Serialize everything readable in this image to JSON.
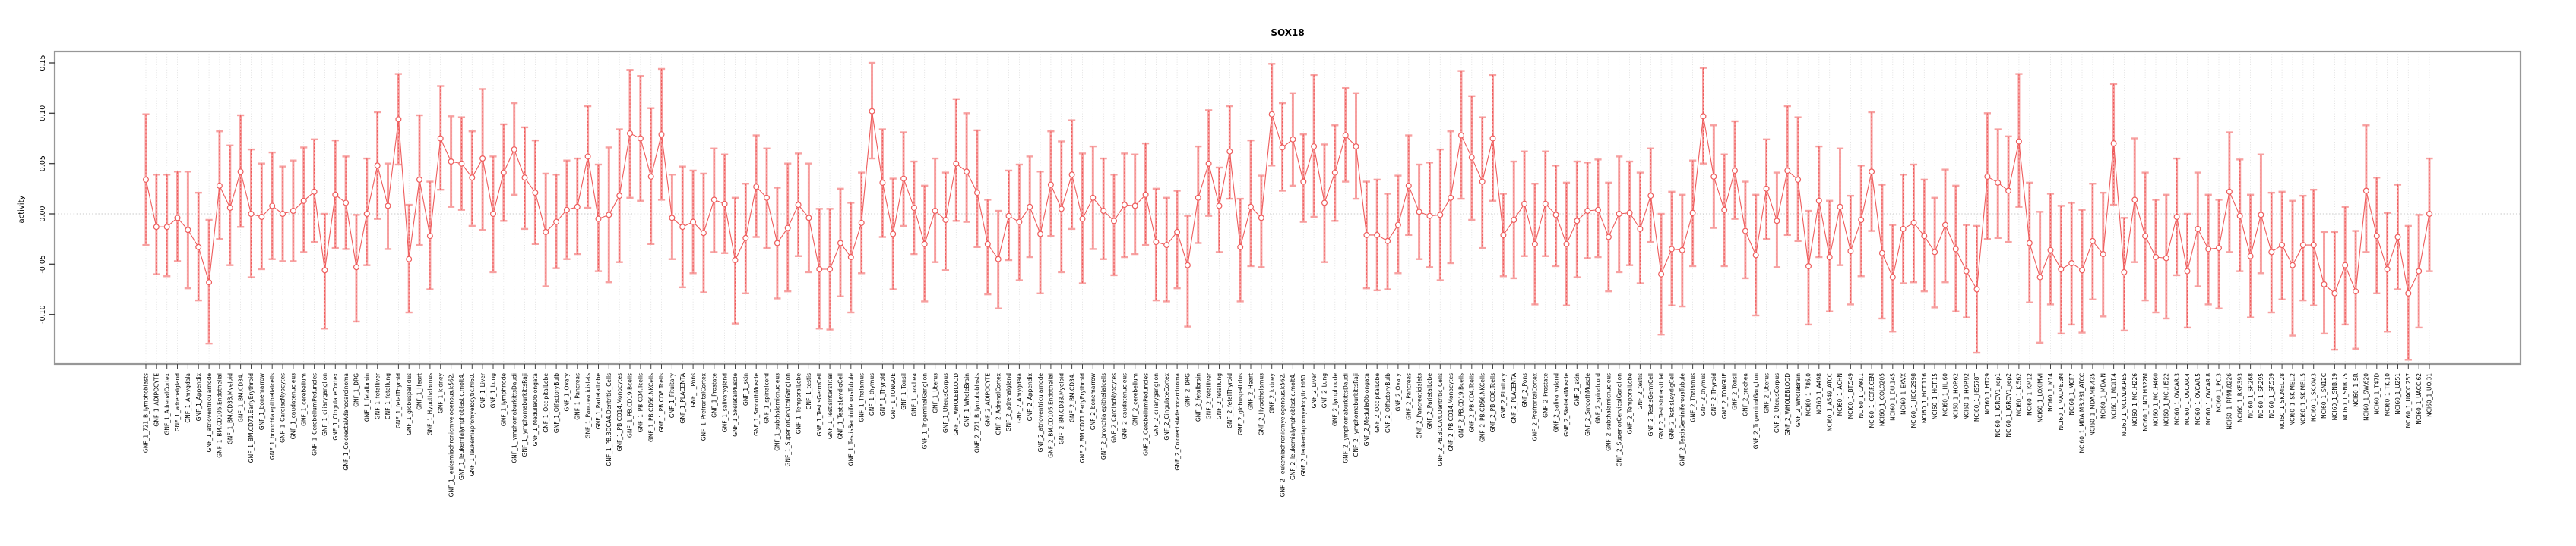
{
  "chart_data": {
    "type": "scatter",
    "subtype": "points-with-error-bars",
    "title": "SOX18",
    "ylabel": "activity",
    "xlabel": "",
    "ylim": [
      -0.149,
      0.161
    ],
    "y_ticks": [
      -0.1,
      -0.05,
      0.0,
      0.05,
      0.1,
      0.15
    ],
    "y_tick_labels": [
      "-0.10",
      "-0.05",
      "0.00",
      "0.05",
      "0.10",
      "0.15"
    ],
    "grid": "dotted vertical gridline per category, dotted horizontal zero line",
    "legend_position": "none",
    "colors": {
      "series": "#ee5c5c",
      "error_bar": "#f7a1a1",
      "grid": "#dcdcdc",
      "zero_line": "#c8c8c8",
      "box": "#979797",
      "tick": "#444444",
      "text": "#000000"
    },
    "categories": [
      "GNF_1_721_B_lymphoblasts",
      "GNF_1_ADIPOCYTE",
      "GNF_1_AdrenalCortex",
      "GNF_1_adrenalgland",
      "GNF_1_Amygdala",
      "GNF_1_Appendix",
      "GNF_1_atrioventricularnode",
      "GNF_1_BM.CD105.Endothelial",
      "GNF_1_BM.CD33.Myeloid",
      "GNF_1_BM.CD34.",
      "GNF_1_BM.CD71.EarlyErythroid",
      "GNF_1_bonemarrow",
      "GNF_1_bronchialepithelialcells",
      "GNF_1_CardiacMyocytes",
      "GNF_1_caudatenucleus",
      "GNF_1_cerebellum",
      "GNF_1_CerebellumPeduncles",
      "GNF_1_ciliaryganglion",
      "GNF_1_CingulateCortex",
      "GNF_1_ColorectalAdenocarcinoma",
      "GNF_1_DRG",
      "GNF_1_fetalbrain",
      "GNF_1_fetalliver",
      "GNF_1_fetallung",
      "GNF_1_fetalThyroid",
      "GNF_1_globuspallidus",
      "GNF_1_Heart",
      "GNF_1_Hypothalamus",
      "GNF_1_kidney",
      "GNF_1_leukemiachronicmyelogenous.k562.",
      "GNF_1_leukemialymphoblastic.molt4.",
      "GNF_1_leukemiapromyelocytic.hl60.",
      "GNF_1_Liver",
      "GNF_1_Lung",
      "GNF_1_lymphnode",
      "GNF_1_lymphomaburkittsDaudi",
      "GNF_1_lymphomaburkittsRaji",
      "GNF_1_MedullaOblongata",
      "GNF_1_OccipitalLobe",
      "GNF_1_OlfactoryBulb",
      "GNF_1_Ovary",
      "GNF_1_Pancreas",
      "GNF_1_Pancreaticislets",
      "GNF_1_ParietalLobe",
      "GNF_1_PB.BDCA4.Dentritic_Cells",
      "GNF_1_PB.CD14.Monocytes",
      "GNF_1_PB.CD19.Bcells",
      "GNF_1_PB.CD4.Tcells",
      "GNF_1_PB.CD56.NKCells",
      "GNF_1_PB.CD8.Tcells",
      "GNF_1_Pituitary",
      "GNF_1_PLACENTA",
      "GNF_1_Pons",
      "GNF_1_PrefrontalCortex",
      "GNF_1_Prostate",
      "GNF_1_salivarygland",
      "GNF_1_SkeletalMuscle",
      "GNF_1_skin",
      "GNF_1_SmoothMuscle",
      "GNF_1_spinalcord",
      "GNF_1_subthalamicnucleus",
      "GNF_1_SuperiorCervicalGanglion",
      "GNF_1_TemporalLobe",
      "GNF_1_testis",
      "GNF_1_TestisGermCell",
      "GNF_1_TestisInterstitial",
      "GNF_1_TestisLeydigCell",
      "GNF_1_TestisSeminiferousTubule",
      "GNF_1_Thalamus",
      "GNF_1_thymus",
      "GNF_1_Thyroid",
      "GNF_1_TONGUE",
      "GNF_1_Tonsil",
      "GNF_1_trachea",
      "GNF_1_TrigeminalGanglion",
      "GNF_1_Uterus",
      "GNF_1_UterusCorpus",
      "GNF_1_WHOLEBLOOD",
      "GNF_1_WholeBrain",
      "GNF_2_721_B_lymphoblasts",
      "GNF_2_ADIPOCYTE",
      "GNF_2_AdrenalCortex",
      "GNF_2_adrenalgland",
      "GNF_2_Amygdala",
      "GNF_2_Appendix",
      "GNF_2_atrioventricularnode",
      "GNF_2_BM.CD105.Endothelial",
      "GNF_2_BM.CD33.Myeloid",
      "GNF_2_BM.CD34.",
      "GNF_2_BM.CD71.EarlyErythroid",
      "GNF_2_bonemarrow",
      "GNF_2_bronchialepithelialcells",
      "GNF_2_CardiacMyocytes",
      "GNF_2_caudatenucleus",
      "GNF_2_cerebellum",
      "GNF_2_CerebellumPeduncles",
      "GNF_2_ciliaryganglion",
      "GNF_2_CingulateCortex",
      "GNF_2_ColorectalAdenocarcinoma",
      "GNF_2_DRG",
      "GNF_2_fetalbrain",
      "GNF_2_fetalliver",
      "GNF_2_fetallung",
      "GNF_2_fetalThyroid",
      "GNF_2_globuspallidus",
      "GNF_2_Heart",
      "GNF_2_Hypothalamus",
      "GNF_2_kidney",
      "GNF_2_leukemiachronicmyelogenous.k562.",
      "GNF_2_leukemialymphoblastic.molt4.",
      "GNF_2_leukemiapromyelocytic.hl60.",
      "GNF_2_Liver",
      "GNF_2_Lung",
      "GNF_2_lymphnode",
      "GNF_2_lymphomaburkittsDaudi",
      "GNF_2_lymphomaburkittsRaji",
      "GNF_2_MedullaOblongata",
      "GNF_2_OccipitalLobe",
      "GNF_2_OlfactoryBulb",
      "GNF_2_Ovary",
      "GNF_2_Pancreas",
      "GNF_2_Pancreaticislets",
      "GNF_2_ParietalLobe",
      "GNF_2_PB.BDCA4.Dentritic_Cells",
      "GNF_2_PB.CD14.Monocytes",
      "GNF_2_PB.CD19.Bcells",
      "GNF_2_PB.CD4.Tcells",
      "GNF_2_PB.CD56.NKCells",
      "GNF_2_PB.CD8.Tcells",
      "GNF_2_Pituitary",
      "GNF_2_PLACENTA",
      "GNF_2_Pons",
      "GNF_2_PrefrontalCortex",
      "GNF_2_Prostate",
      "GNF_2_salivarygland",
      "GNF_2_SkeletalMuscle",
      "GNF_2_skin",
      "GNF_2_SmoothMuscle",
      "GNF_2_spinalcord",
      "GNF_2_subthalamicnucleus",
      "GNF_2_SuperiorCervicalGanglion",
      "GNF_2_TemporalLobe",
      "GNF_2_testis",
      "GNF_2_TestisGermCell",
      "GNF_2_TestisInterstitial",
      "GNF_2_TestisLeydigCell",
      "GNF_2_TestisSeminiferousTubule",
      "GNF_2_Thalamus",
      "GNF_2_thymus",
      "GNF_2_Thyroid",
      "GNF_2_TONGUE",
      "GNF_2_Tonsil",
      "GNF_2_trachea",
      "GNF_2_TrigeminalGanglion",
      "GNF_2_Uterus",
      "GNF_2_UterusCorpus",
      "GNF_2_WHOLEBLOOD",
      "GNF_2_WholeBrain",
      "NCI60_1_786.0",
      "NCI60_1_A498",
      "NCI60_1_A549_ATCC",
      "NCI60_1_ACHN",
      "NCI60_1_BT.549",
      "NCI60_1_CAKI.1",
      "NCI60_1_CCRF.CEM",
      "NCI60_1_COLO205",
      "NCI60_1_DU.145",
      "NCI60_1_EKVX",
      "NCI60_1_HCC.2998",
      "NCI60_1_HCT.116",
      "NCI60_1_HCT.15",
      "NCI60_1_HL.60",
      "NCI60_1_HOP.62",
      "NCI60_1_HOP.92",
      "NCI60_1_HS578T",
      "NCI60_1_HT29",
      "NCI60_1_IGROV1_rep1",
      "NCI60_1_IGROV1_rep2",
      "NCI60_1_K.562",
      "NCI60_1_KM12",
      "NCI60_1_LOXIMVI",
      "NCI60_1_M14",
      "NCI60_1_MALME.3M",
      "NCI60_1_MCF7",
      "NCI60_1_MDA.MB.231_ATCC",
      "NCI60_1_MDA.MB.435",
      "NCI60_1_MDA.N",
      "NCI60_1_MOLT.4",
      "NCI60_1_NCI.ADR.RES",
      "NCI60_1_NCI.H226",
      "NCI60_1_NCI.H322M",
      "NCI60_1_NCI.H460",
      "NCI60_1_NCI.H522",
      "NCI60_1_OVCAR.3",
      "NCI60_1_OVCAR.4",
      "NCI60_1_OVCAR.5",
      "NCI60_1_OVCAR.8",
      "NCI60_1_PC.3",
      "NCI60_1_RPMI.8226",
      "NCI60_1_RXF.393",
      "NCI60_1_SF.268",
      "NCI60_1_SF.295",
      "NCI60_1_SF.539",
      "NCI60_1_SK.MEL.28",
      "NCI60_1_SK.MEL.2",
      "NCI60_1_SK.MEL.5",
      "NCI60_1_SK.OV.3",
      "NCI60_1_SN12C",
      "NCI60_1_SNB.19",
      "NCI60_1_SNB.75",
      "NCI60_1_SR",
      "NCI60_1_SW.620",
      "NCI60_1_T47D",
      "NCI60_1_TK.10",
      "NCI60_1_U251",
      "NCI60_1_UACC.257",
      "NCI60_1_UACC.62",
      "NCI60_1_UO.31"
    ],
    "values": [
      0.034,
      -0.013,
      -0.013,
      -0.004,
      -0.016,
      -0.033,
      -0.068,
      0.028,
      0.006,
      0.042,
      0.0,
      -0.003,
      0.008,
      0.0,
      0.003,
      0.013,
      0.022,
      -0.056,
      0.019,
      0.011,
      -0.053,
      0.0,
      0.048,
      0.008,
      0.094,
      -0.045,
      0.034,
      -0.022,
      0.075,
      0.052,
      0.05,
      0.036,
      0.055,
      0.0,
      0.041,
      0.064,
      0.036,
      0.021,
      -0.018,
      -0.008,
      0.004,
      0.007,
      0.057,
      -0.005,
      -0.001,
      0.018,
      0.08,
      0.075,
      0.037,
      0.079,
      -0.004,
      -0.013,
      -0.008,
      -0.019,
      0.014,
      0.01,
      -0.046,
      -0.024,
      0.027,
      0.016,
      -0.029,
      -0.014,
      0.009,
      -0.004,
      -0.055,
      -0.055,
      -0.029,
      -0.043,
      -0.009,
      0.102,
      0.031,
      -0.02,
      0.035,
      0.006,
      -0.03,
      0.003,
      -0.006,
      0.05,
      0.042,
      0.021,
      -0.03,
      -0.045,
      -0.002,
      -0.008,
      0.007,
      -0.02,
      0.029,
      0.005,
      0.039,
      -0.005,
      0.016,
      0.003,
      -0.007,
      0.009,
      0.008,
      0.019,
      -0.028,
      -0.031,
      -0.018,
      -0.051,
      0.016,
      0.05,
      0.008,
      0.062,
      -0.033,
      0.007,
      -0.004,
      0.099,
      0.066,
      0.074,
      0.032,
      0.067,
      0.011,
      0.041,
      0.078,
      0.067,
      -0.021,
      -0.021,
      -0.027,
      -0.011,
      0.028,
      0.002,
      -0.002,
      -0.001,
      0.016,
      0.078,
      0.056,
      0.032,
      0.075,
      -0.021,
      -0.006,
      0.01,
      -0.03,
      0.01,
      -0.001,
      -0.03,
      -0.007,
      0.003,
      0.004,
      -0.023,
      0.0,
      0.001,
      -0.015,
      0.018,
      -0.06,
      -0.035,
      -0.036,
      0.001,
      0.097,
      0.037,
      0.004,
      0.043,
      -0.017,
      -0.041,
      0.025,
      -0.007,
      0.043,
      0.034,
      -0.052,
      0.013,
      -0.043,
      0.007,
      -0.037,
      -0.006,
      0.042,
      -0.039,
      -0.063,
      -0.015,
      -0.009,
      -0.022,
      -0.038,
      -0.011,
      -0.035,
      -0.057,
      -0.075,
      0.037,
      0.031,
      0.023,
      0.072,
      -0.029,
      -0.063,
      -0.036,
      -0.055,
      -0.049,
      -0.056,
      -0.027,
      -0.04,
      0.07,
      -0.058,
      0.014,
      -0.022,
      -0.043,
      -0.044,
      -0.003,
      -0.057,
      -0.015,
      -0.035,
      -0.034,
      0.022,
      -0.002,
      -0.042,
      -0.001,
      -0.038,
      -0.031,
      -0.051,
      -0.031,
      -0.031,
      -0.07,
      -0.079,
      -0.051,
      -0.077,
      0.023,
      -0.022,
      -0.055,
      -0.023,
      -0.079,
      -0.057,
      0.0
    ],
    "ci_low": [
      -0.031,
      -0.06,
      -0.062,
      -0.047,
      -0.074,
      -0.086,
      -0.129,
      -0.025,
      -0.051,
      -0.013,
      -0.063,
      -0.055,
      -0.045,
      -0.047,
      -0.047,
      -0.038,
      -0.028,
      -0.114,
      -0.034,
      -0.035,
      -0.107,
      -0.051,
      -0.005,
      -0.035,
      0.049,
      -0.098,
      -0.031,
      -0.075,
      0.024,
      0.007,
      0.004,
      -0.012,
      -0.016,
      -0.058,
      -0.007,
      0.019,
      -0.015,
      -0.03,
      -0.072,
      -0.054,
      -0.045,
      -0.04,
      0.006,
      -0.057,
      -0.068,
      -0.048,
      0.016,
      0.013,
      -0.03,
      0.014,
      -0.045,
      -0.073,
      -0.059,
      -0.078,
      -0.038,
      -0.039,
      -0.109,
      -0.079,
      -0.023,
      -0.034,
      -0.084,
      -0.077,
      -0.042,
      -0.058,
      -0.114,
      -0.115,
      -0.082,
      -0.098,
      -0.059,
      0.055,
      -0.023,
      -0.075,
      -0.012,
      -0.04,
      -0.087,
      -0.048,
      -0.056,
      -0.007,
      -0.008,
      -0.033,
      -0.08,
      -0.094,
      -0.046,
      -0.066,
      -0.043,
      -0.079,
      -0.022,
      -0.058,
      -0.015,
      -0.069,
      -0.035,
      -0.045,
      -0.061,
      -0.043,
      -0.04,
      -0.031,
      -0.086,
      -0.087,
      -0.074,
      -0.112,
      -0.029,
      -0.002,
      -0.038,
      0.015,
      -0.087,
      -0.052,
      -0.053,
      0.048,
      0.023,
      0.028,
      -0.008,
      -0.003,
      -0.048,
      -0.007,
      0.032,
      0.015,
      -0.074,
      -0.076,
      -0.075,
      -0.059,
      -0.021,
      -0.045,
      -0.053,
      -0.066,
      -0.049,
      0.015,
      -0.006,
      -0.034,
      0.013,
      -0.062,
      -0.064,
      -0.042,
      -0.09,
      -0.042,
      -0.052,
      -0.091,
      -0.063,
      -0.044,
      -0.043,
      -0.077,
      -0.058,
      -0.051,
      -0.069,
      -0.028,
      -0.12,
      -0.091,
      -0.092,
      -0.052,
      0.05,
      -0.014,
      -0.052,
      -0.005,
      -0.064,
      -0.101,
      -0.025,
      -0.053,
      -0.021,
      -0.027,
      -0.11,
      -0.043,
      -0.097,
      -0.051,
      -0.09,
      -0.062,
      -0.017,
      -0.104,
      -0.117,
      -0.069,
      -0.068,
      -0.077,
      -0.093,
      -0.068,
      -0.097,
      -0.103,
      -0.138,
      -0.025,
      -0.024,
      -0.028,
      0.007,
      -0.088,
      -0.128,
      -0.09,
      -0.119,
      -0.11,
      -0.118,
      -0.085,
      -0.102,
      0.009,
      -0.116,
      -0.048,
      -0.086,
      -0.098,
      -0.104,
      -0.061,
      -0.113,
      -0.072,
      -0.09,
      -0.094,
      -0.038,
      -0.057,
      -0.103,
      -0.059,
      -0.098,
      -0.085,
      -0.121,
      -0.086,
      -0.091,
      -0.119,
      -0.135,
      -0.11,
      -0.134,
      -0.038,
      -0.079,
      -0.117,
      -0.075,
      -0.145,
      -0.113,
      -0.057
    ],
    "ci_high": [
      0.099,
      0.039,
      0.039,
      0.042,
      0.042,
      0.021,
      -0.006,
      0.082,
      0.068,
      0.098,
      0.064,
      0.05,
      0.061,
      0.047,
      0.053,
      0.066,
      0.074,
      0.0,
      0.073,
      0.057,
      -0.001,
      0.055,
      0.101,
      0.05,
      0.139,
      0.009,
      0.098,
      0.032,
      0.127,
      0.097,
      0.096,
      0.082,
      0.124,
      0.057,
      0.089,
      0.11,
      0.086,
      0.073,
      0.04,
      0.039,
      0.053,
      0.055,
      0.107,
      0.049,
      0.066,
      0.084,
      0.143,
      0.137,
      0.105,
      0.144,
      0.039,
      0.047,
      0.043,
      0.04,
      0.065,
      0.059,
      0.016,
      0.03,
      0.078,
      0.065,
      0.026,
      0.05,
      0.06,
      0.05,
      0.005,
      0.005,
      0.025,
      0.011,
      0.041,
      0.15,
      0.084,
      0.035,
      0.081,
      0.052,
      0.028,
      0.055,
      0.041,
      0.114,
      0.1,
      0.083,
      0.014,
      0.003,
      0.043,
      0.049,
      0.057,
      0.042,
      0.082,
      0.072,
      0.093,
      0.06,
      0.067,
      0.055,
      0.039,
      0.06,
      0.059,
      0.07,
      0.025,
      0.016,
      0.023,
      -0.002,
      0.067,
      0.103,
      0.046,
      0.107,
      0.015,
      0.073,
      0.038,
      0.149,
      0.11,
      0.12,
      0.079,
      0.138,
      0.069,
      0.088,
      0.125,
      0.12,
      0.032,
      0.034,
      0.02,
      0.038,
      0.078,
      0.049,
      0.051,
      0.064,
      0.082,
      0.142,
      0.117,
      0.096,
      0.138,
      0.02,
      0.052,
      0.062,
      0.03,
      0.062,
      0.048,
      0.031,
      0.052,
      0.051,
      0.054,
      0.031,
      0.057,
      0.052,
      0.041,
      0.065,
      0.0,
      0.022,
      0.019,
      0.053,
      0.145,
      0.088,
      0.059,
      0.092,
      0.032,
      0.019,
      0.074,
      0.041,
      0.107,
      0.096,
      0.003,
      0.067,
      0.013,
      0.065,
      0.018,
      0.048,
      0.101,
      0.029,
      -0.011,
      0.039,
      0.049,
      0.034,
      0.016,
      0.044,
      0.028,
      -0.011,
      -0.012,
      0.1,
      0.084,
      0.077,
      0.139,
      0.031,
      0.002,
      0.02,
      0.008,
      0.011,
      0.004,
      0.03,
      0.021,
      0.129,
      -0.004,
      0.075,
      0.041,
      0.014,
      0.019,
      0.055,
      0.0,
      0.041,
      0.019,
      0.014,
      0.081,
      0.054,
      0.019,
      0.059,
      0.021,
      0.022,
      0.013,
      0.018,
      0.024,
      -0.018,
      -0.018,
      0.007,
      -0.017,
      0.088,
      0.036,
      0.001,
      0.029,
      -0.012,
      -0.001,
      0.055
    ]
  }
}
